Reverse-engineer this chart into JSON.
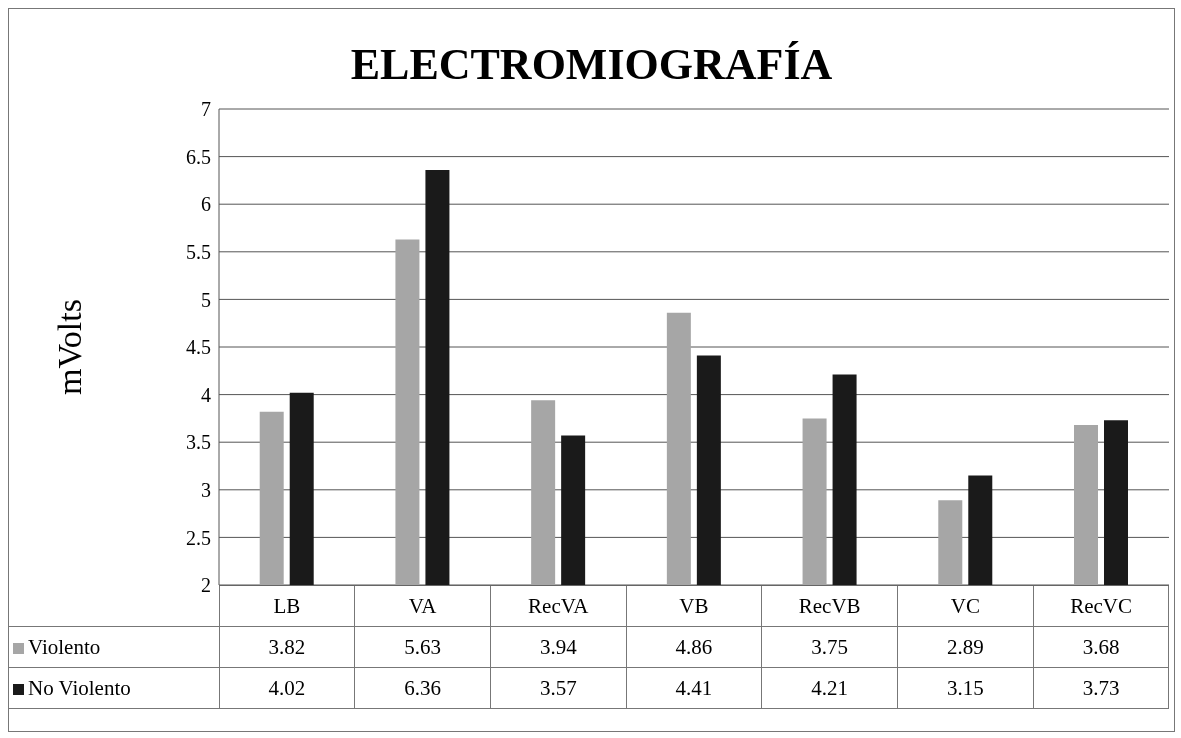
{
  "chart_data": {
    "type": "bar",
    "title": "ELECTROMIOGRAFÍA",
    "ylabel": "mVolts",
    "categories": [
      "LB",
      "VA",
      "RecVA",
      "VB",
      "RecVB",
      "VC",
      "RecVC"
    ],
    "series": [
      {
        "name": "Violento",
        "color": "#a6a6a6",
        "values": [
          3.82,
          5.63,
          3.94,
          4.86,
          3.75,
          2.89,
          3.68
        ]
      },
      {
        "name": "No Violento",
        "color": "#1a1a1a",
        "values": [
          4.02,
          6.36,
          3.57,
          4.41,
          4.21,
          3.15,
          3.73
        ]
      }
    ],
    "ylim": [
      2,
      7
    ],
    "yticks": [
      2,
      2.5,
      3,
      3.5,
      4,
      4.5,
      5,
      5.5,
      6,
      6.5,
      7
    ],
    "grid": "y",
    "legend": "bottom",
    "data_labels": true
  }
}
